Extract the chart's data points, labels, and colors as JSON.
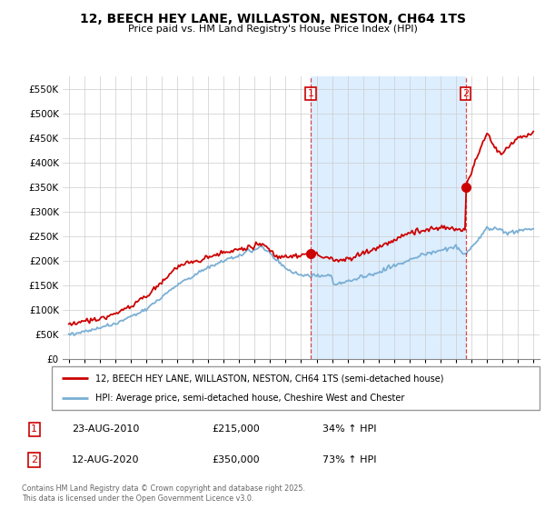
{
  "title": "12, BEECH HEY LANE, WILLASTON, NESTON, CH64 1TS",
  "subtitle": "Price paid vs. HM Land Registry's House Price Index (HPI)",
  "legend_line1": "12, BEECH HEY LANE, WILLASTON, NESTON, CH64 1TS (semi-detached house)",
  "legend_line2": "HPI: Average price, semi-detached house, Cheshire West and Chester",
  "annotation1_num": "1",
  "annotation1_date": "23-AUG-2010",
  "annotation1_price": "£215,000",
  "annotation1_hpi": "34% ↑ HPI",
  "annotation2_num": "2",
  "annotation2_date": "12-AUG-2020",
  "annotation2_price": "£350,000",
  "annotation2_hpi": "73% ↑ HPI",
  "footer": "Contains HM Land Registry data © Crown copyright and database right 2025.\nThis data is licensed under the Open Government Licence v3.0.",
  "red_line_color": "#cc0000",
  "blue_line_color": "#7aafd4",
  "shade_color": "#ddeeff",
  "vline1_x": 2010.62,
  "vline2_x": 2020.62,
  "ylim": [
    0,
    575000
  ],
  "yticks": [
    0,
    50000,
    100000,
    150000,
    200000,
    250000,
    300000,
    350000,
    400000,
    450000,
    500000,
    550000
  ],
  "ytick_labels": [
    "£0",
    "£50K",
    "£100K",
    "£150K",
    "£200K",
    "£250K",
    "£300K",
    "£350K",
    "£400K",
    "£450K",
    "£500K",
    "£550K"
  ],
  "xlim_left": 1994.6,
  "xlim_right": 2025.4
}
